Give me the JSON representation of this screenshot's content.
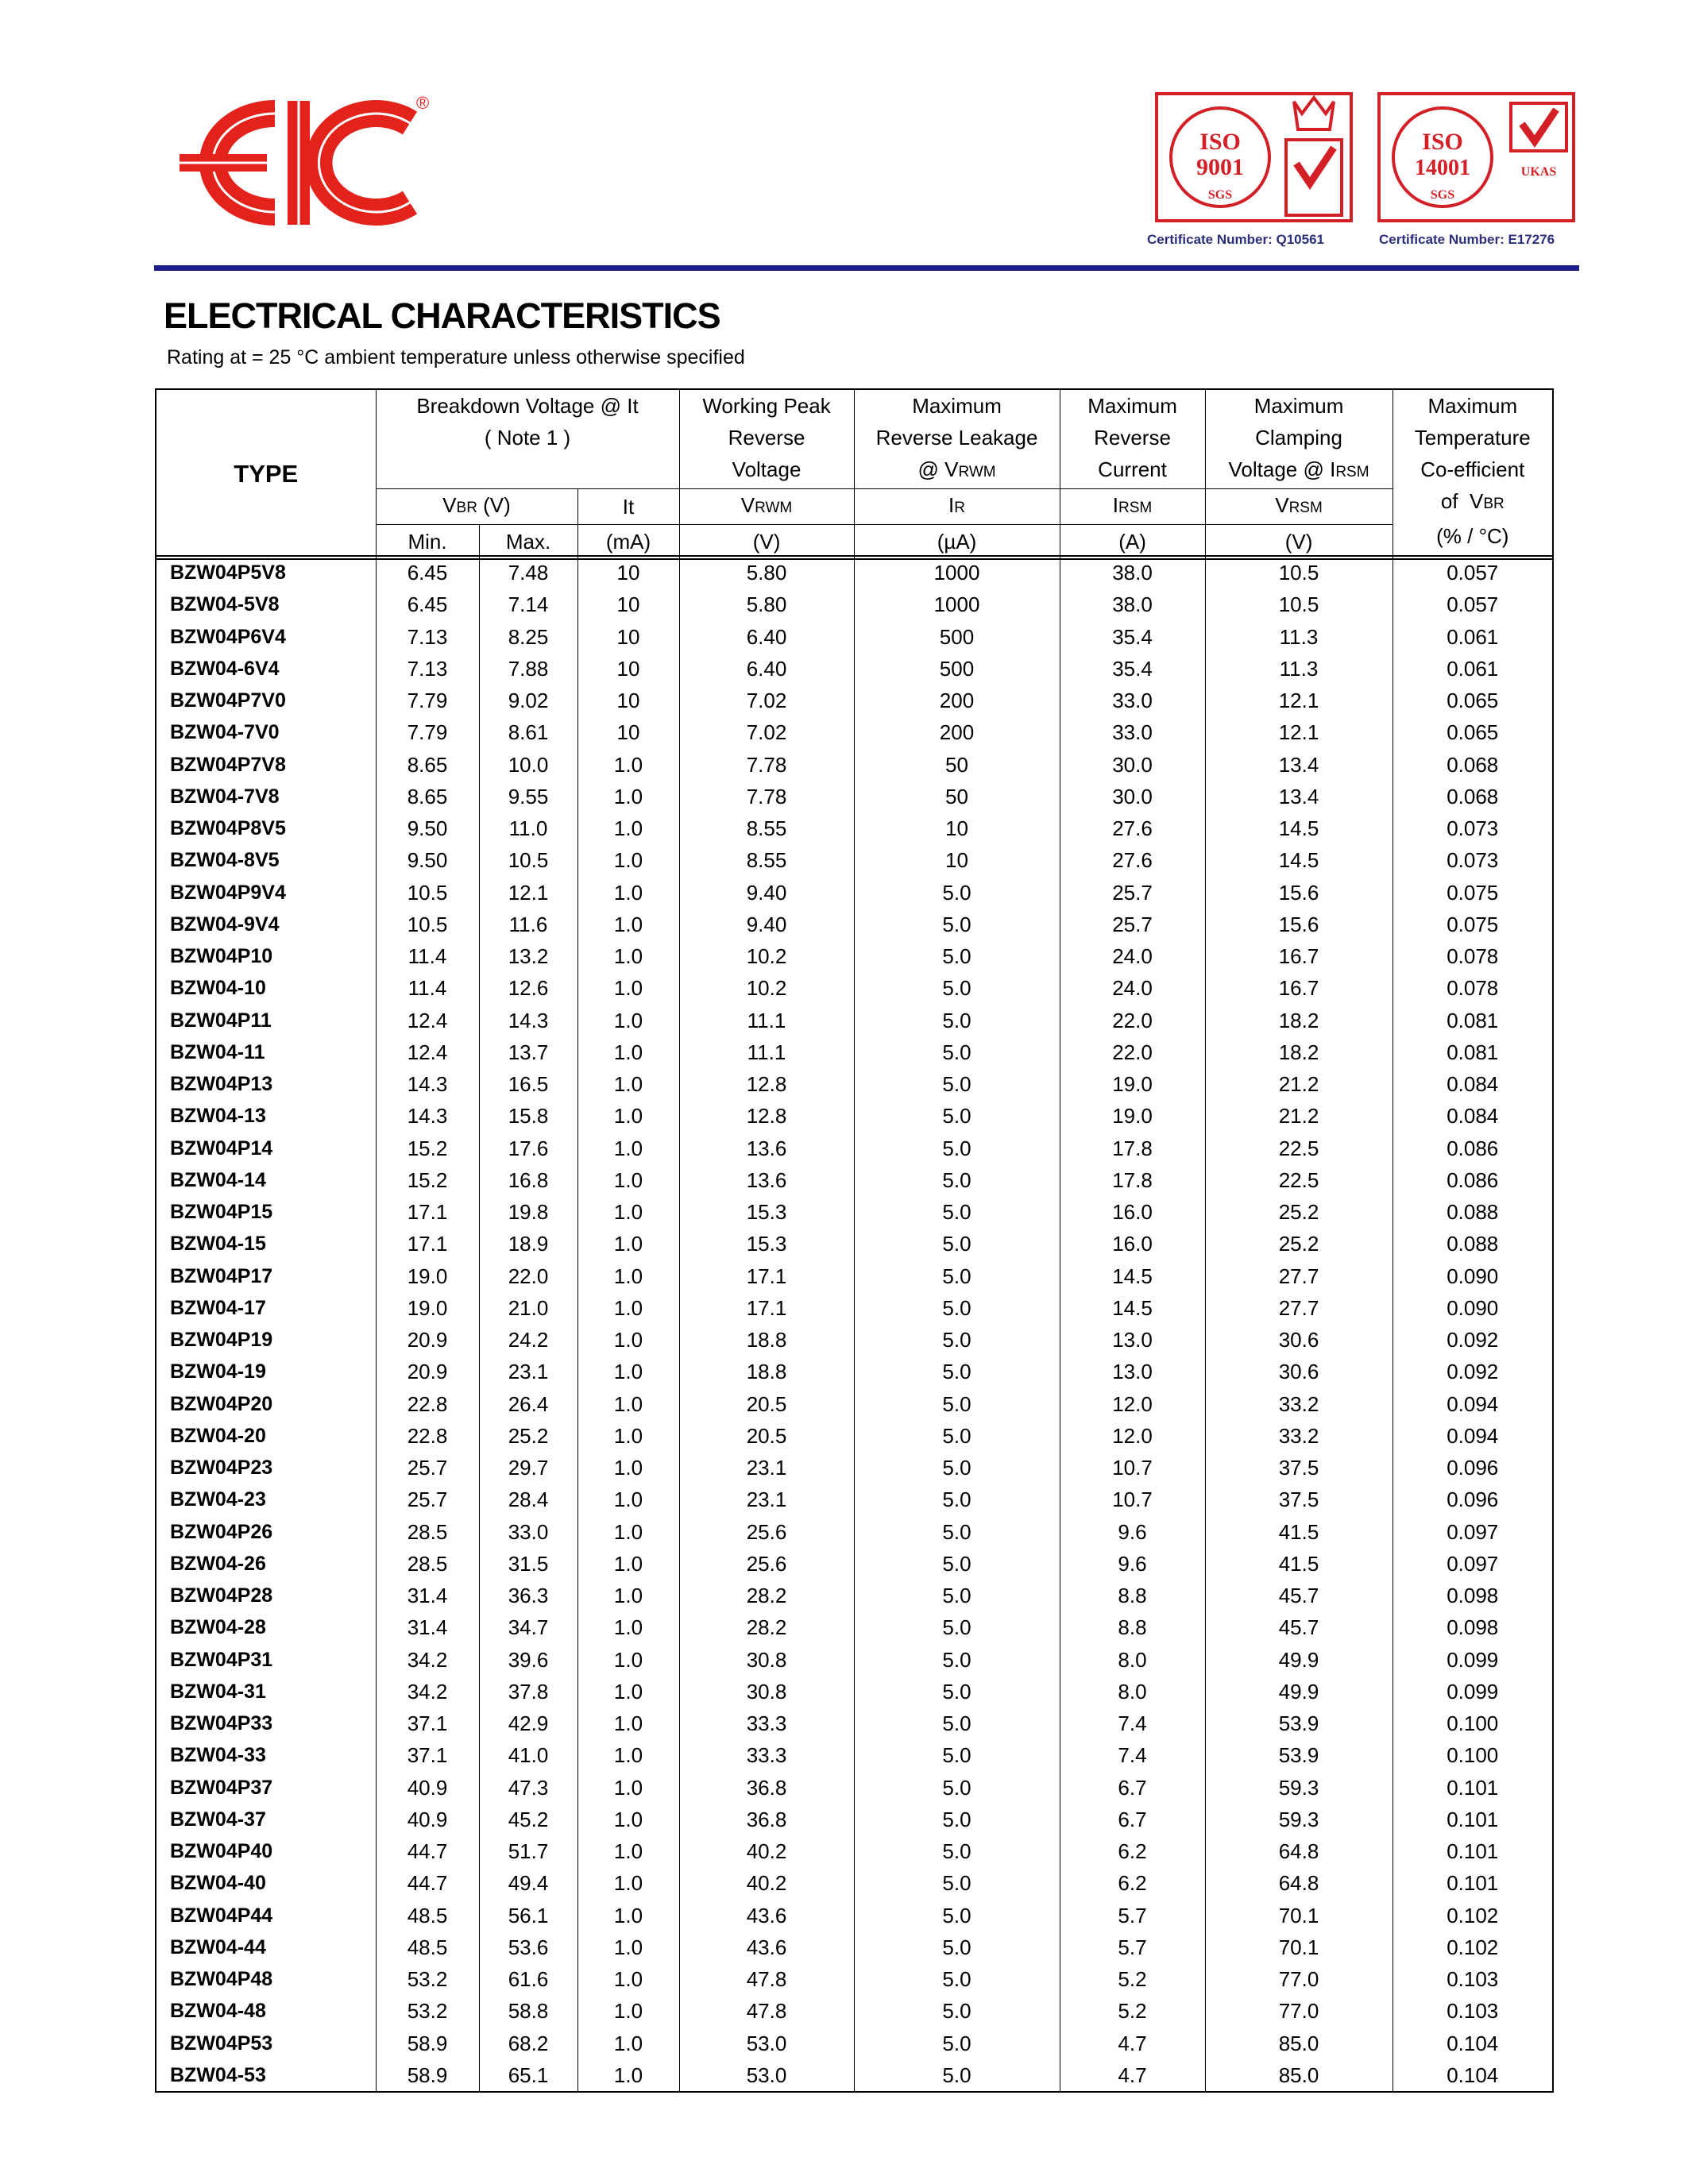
{
  "header": {
    "trademark": "®",
    "certificates": [
      {
        "iso": "ISO",
        "standard": "9001",
        "body": "SGS",
        "number": "Certificate Number: Q10561"
      },
      {
        "iso": "ISO",
        "standard": "14001",
        "body": "SGS",
        "accreditation": "UKAS",
        "number": "Certificate Number: E17276"
      }
    ]
  },
  "title": "ELECTRICAL CHARACTERISTICS",
  "subtitle": "Rating at  = 25 °C ambient temperature unless otherwise specified",
  "table": {
    "columns": {
      "type": "TYPE",
      "breakdown": {
        "lines": [
          "Breakdown Voltage @  It",
          "( Note 1 )"
        ],
        "symbol": "V",
        "sub": "BR",
        "unit": " (V)",
        "min": "Min.",
        "max": "Max."
      },
      "test_current": {
        "symbol": "It",
        "unit": "(mA)"
      },
      "working_peak": {
        "lines": [
          "Working Peak",
          "Reverse",
          "Voltage"
        ],
        "symbol": "V",
        "sub": "RWM",
        "unit": "(V)"
      },
      "leakage": {
        "lines": [
          "Maximum",
          "Reverse Leakage"
        ],
        "condition": "@ ",
        "condition_symbol": "V",
        "condition_sub": "RWM",
        "symbol": "I",
        "sub": "R",
        "unit": "(µA)"
      },
      "reverse_current": {
        "lines": [
          "Maximum",
          "Reverse",
          "Current"
        ],
        "symbol": "I",
        "sub": "RSM",
        "unit": "(A)"
      },
      "clamping": {
        "lines": [
          "Maximum",
          "Clamping"
        ],
        "condition": "Voltage @ ",
        "condition_symbol": "I",
        "condition_sub": "RSM",
        "symbol": "V",
        "sub": "RSM",
        "unit": "(V)"
      },
      "temperature": {
        "lines": [
          "Maximum",
          "Temperature",
          "Co-efficient"
        ],
        "of": "of  ",
        "symbol": "V",
        "sub": "BR",
        "unit": "(% / °C)"
      }
    },
    "rows": [
      [
        "BZW04P5V8",
        "6.45",
        "7.48",
        "10",
        "5.80",
        "1000",
        "38.0",
        "10.5",
        "0.057"
      ],
      [
        "BZW04-5V8",
        "6.45",
        "7.14",
        "10",
        "5.80",
        "1000",
        "38.0",
        "10.5",
        "0.057"
      ],
      [
        "BZW04P6V4",
        "7.13",
        "8.25",
        "10",
        "6.40",
        "500",
        "35.4",
        "11.3",
        "0.061"
      ],
      [
        "BZW04-6V4",
        "7.13",
        "7.88",
        "10",
        "6.40",
        "500",
        "35.4",
        "11.3",
        "0.061"
      ],
      [
        "BZW04P7V0",
        "7.79",
        "9.02",
        "10",
        "7.02",
        "200",
        "33.0",
        "12.1",
        "0.065"
      ],
      [
        "BZW04-7V0",
        "7.79",
        "8.61",
        "10",
        "7.02",
        "200",
        "33.0",
        "12.1",
        "0.065"
      ],
      [
        "BZW04P7V8",
        "8.65",
        "10.0",
        "1.0",
        "7.78",
        "50",
        "30.0",
        "13.4",
        "0.068"
      ],
      [
        "BZW04-7V8",
        "8.65",
        "9.55",
        "1.0",
        "7.78",
        "50",
        "30.0",
        "13.4",
        "0.068"
      ],
      [
        "BZW04P8V5",
        "9.50",
        "11.0",
        "1.0",
        "8.55",
        "10",
        "27.6",
        "14.5",
        "0.073"
      ],
      [
        "BZW04-8V5",
        "9.50",
        "10.5",
        "1.0",
        "8.55",
        "10",
        "27.6",
        "14.5",
        "0.073"
      ],
      [
        "BZW04P9V4",
        "10.5",
        "12.1",
        "1.0",
        "9.40",
        "5.0",
        "25.7",
        "15.6",
        "0.075"
      ],
      [
        "BZW04-9V4",
        "10.5",
        "11.6",
        "1.0",
        "9.40",
        "5.0",
        "25.7",
        "15.6",
        "0.075"
      ],
      [
        "BZW04P10",
        "11.4",
        "13.2",
        "1.0",
        "10.2",
        "5.0",
        "24.0",
        "16.7",
        "0.078"
      ],
      [
        "BZW04-10",
        "11.4",
        "12.6",
        "1.0",
        "10.2",
        "5.0",
        "24.0",
        "16.7",
        "0.078"
      ],
      [
        "BZW04P11",
        "12.4",
        "14.3",
        "1.0",
        "11.1",
        "5.0",
        "22.0",
        "18.2",
        "0.081"
      ],
      [
        "BZW04-11",
        "12.4",
        "13.7",
        "1.0",
        "11.1",
        "5.0",
        "22.0",
        "18.2",
        "0.081"
      ],
      [
        "BZW04P13",
        "14.3",
        "16.5",
        "1.0",
        "12.8",
        "5.0",
        "19.0",
        "21.2",
        "0.084"
      ],
      [
        "BZW04-13",
        "14.3",
        "15.8",
        "1.0",
        "12.8",
        "5.0",
        "19.0",
        "21.2",
        "0.084"
      ],
      [
        "BZW04P14",
        "15.2",
        "17.6",
        "1.0",
        "13.6",
        "5.0",
        "17.8",
        "22.5",
        "0.086"
      ],
      [
        "BZW04-14",
        "15.2",
        "16.8",
        "1.0",
        "13.6",
        "5.0",
        "17.8",
        "22.5",
        "0.086"
      ],
      [
        "BZW04P15",
        "17.1",
        "19.8",
        "1.0",
        "15.3",
        "5.0",
        "16.0",
        "25.2",
        "0.088"
      ],
      [
        "BZW04-15",
        "17.1",
        "18.9",
        "1.0",
        "15.3",
        "5.0",
        "16.0",
        "25.2",
        "0.088"
      ],
      [
        "BZW04P17",
        "19.0",
        "22.0",
        "1.0",
        "17.1",
        "5.0",
        "14.5",
        "27.7",
        "0.090"
      ],
      [
        "BZW04-17",
        "19.0",
        "21.0",
        "1.0",
        "17.1",
        "5.0",
        "14.5",
        "27.7",
        "0.090"
      ],
      [
        "BZW04P19",
        "20.9",
        "24.2",
        "1.0",
        "18.8",
        "5.0",
        "13.0",
        "30.6",
        "0.092"
      ],
      [
        "BZW04-19",
        "20.9",
        "23.1",
        "1.0",
        "18.8",
        "5.0",
        "13.0",
        "30.6",
        "0.092"
      ],
      [
        "BZW04P20",
        "22.8",
        "26.4",
        "1.0",
        "20.5",
        "5.0",
        "12.0",
        "33.2",
        "0.094"
      ],
      [
        "BZW04-20",
        "22.8",
        "25.2",
        "1.0",
        "20.5",
        "5.0",
        "12.0",
        "33.2",
        "0.094"
      ],
      [
        "BZW04P23",
        "25.7",
        "29.7",
        "1.0",
        "23.1",
        "5.0",
        "10.7",
        "37.5",
        "0.096"
      ],
      [
        "BZW04-23",
        "25.7",
        "28.4",
        "1.0",
        "23.1",
        "5.0",
        "10.7",
        "37.5",
        "0.096"
      ],
      [
        "BZW04P26",
        "28.5",
        "33.0",
        "1.0",
        "25.6",
        "5.0",
        "9.6",
        "41.5",
        "0.097"
      ],
      [
        "BZW04-26",
        "28.5",
        "31.5",
        "1.0",
        "25.6",
        "5.0",
        "9.6",
        "41.5",
        "0.097"
      ],
      [
        "BZW04P28",
        "31.4",
        "36.3",
        "1.0",
        "28.2",
        "5.0",
        "8.8",
        "45.7",
        "0.098"
      ],
      [
        "BZW04-28",
        "31.4",
        "34.7",
        "1.0",
        "28.2",
        "5.0",
        "8.8",
        "45.7",
        "0.098"
      ],
      [
        "BZW04P31",
        "34.2",
        "39.6",
        "1.0",
        "30.8",
        "5.0",
        "8.0",
        "49.9",
        "0.099"
      ],
      [
        "BZW04-31",
        "34.2",
        "37.8",
        "1.0",
        "30.8",
        "5.0",
        "8.0",
        "49.9",
        "0.099"
      ],
      [
        "BZW04P33",
        "37.1",
        "42.9",
        "1.0",
        "33.3",
        "5.0",
        "7.4",
        "53.9",
        "0.100"
      ],
      [
        "BZW04-33",
        "37.1",
        "41.0",
        "1.0",
        "33.3",
        "5.0",
        "7.4",
        "53.9",
        "0.100"
      ],
      [
        "BZW04P37",
        "40.9",
        "47.3",
        "1.0",
        "36.8",
        "5.0",
        "6.7",
        "59.3",
        "0.101"
      ],
      [
        "BZW04-37",
        "40.9",
        "45.2",
        "1.0",
        "36.8",
        "5.0",
        "6.7",
        "59.3",
        "0.101"
      ],
      [
        "BZW04P40",
        "44.7",
        "51.7",
        "1.0",
        "40.2",
        "5.0",
        "6.2",
        "64.8",
        "0.101"
      ],
      [
        "BZW04-40",
        "44.7",
        "49.4",
        "1.0",
        "40.2",
        "5.0",
        "6.2",
        "64.8",
        "0.101"
      ],
      [
        "BZW04P44",
        "48.5",
        "56.1",
        "1.0",
        "43.6",
        "5.0",
        "5.7",
        "70.1",
        "0.102"
      ],
      [
        "BZW04-44",
        "48.5",
        "53.6",
        "1.0",
        "43.6",
        "5.0",
        "5.7",
        "70.1",
        "0.102"
      ],
      [
        "BZW04P48",
        "53.2",
        "61.6",
        "1.0",
        "47.8",
        "5.0",
        "5.2",
        "77.0",
        "0.103"
      ],
      [
        "BZW04-48",
        "53.2",
        "58.8",
        "1.0",
        "47.8",
        "5.0",
        "5.2",
        "77.0",
        "0.103"
      ],
      [
        "BZW04P53",
        "58.9",
        "68.2",
        "1.0",
        "53.0",
        "5.0",
        "4.7",
        "85.0",
        "0.104"
      ],
      [
        "BZW04-53",
        "58.9",
        "65.1",
        "1.0",
        "53.0",
        "5.0",
        "4.7",
        "85.0",
        "0.104"
      ]
    ]
  }
}
